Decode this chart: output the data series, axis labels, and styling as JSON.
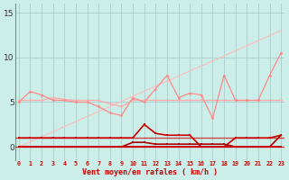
{
  "bg_color": "#cceee8",
  "grid_color": "#aacccc",
  "x_values": [
    0,
    1,
    2,
    3,
    4,
    5,
    6,
    7,
    8,
    9,
    10,
    11,
    12,
    13,
    14,
    15,
    16,
    17,
    18,
    19,
    20,
    21,
    22,
    23
  ],
  "line_diag": [
    0.0,
    0.565,
    1.13,
    1.696,
    2.261,
    2.826,
    3.391,
    3.957,
    4.522,
    5.087,
    5.652,
    6.217,
    6.783,
    7.348,
    7.913,
    8.478,
    9.043,
    9.609,
    10.174,
    10.739,
    11.304,
    11.87,
    12.435,
    13.0
  ],
  "line_flat": [
    5.2,
    5.2,
    5.2,
    5.5,
    5.3,
    5.2,
    5.2,
    5.2,
    4.8,
    4.5,
    5.2,
    5.2,
    5.2,
    5.2,
    5.2,
    5.2,
    5.2,
    5.2,
    5.2,
    5.2,
    5.2,
    5.2,
    5.2,
    5.2
  ],
  "line_jagged": [
    5.0,
    6.2,
    5.8,
    5.2,
    5.2,
    5.0,
    5.0,
    4.5,
    3.8,
    3.5,
    5.5,
    5.0,
    6.5,
    8.0,
    5.5,
    6.0,
    5.8,
    3.2,
    8.0,
    5.2,
    5.2,
    5.2,
    8.0,
    10.5
  ],
  "line_d1": [
    1.0,
    1.0,
    1.0,
    1.0,
    1.0,
    1.0,
    1.0,
    1.0,
    1.0,
    1.0,
    1.0,
    2.5,
    1.5,
    1.3,
    1.3,
    1.3,
    0.0,
    0.0,
    0.0,
    1.0,
    1.0,
    1.0,
    1.0,
    1.3
  ],
  "line_d2": [
    0.0,
    0.0,
    0.0,
    0.0,
    0.0,
    0.0,
    0.0,
    0.0,
    0.0,
    0.0,
    0.5,
    0.5,
    0.3,
    0.3,
    0.3,
    0.3,
    0.3,
    0.3,
    0.3,
    0.0,
    0.0,
    0.0,
    0.0,
    1.3
  ],
  "line_d3": [
    0.0,
    0.0,
    0.0,
    0.0,
    0.0,
    0.0,
    0.0,
    0.0,
    0.0,
    0.0,
    0.0,
    0.0,
    0.0,
    0.0,
    0.0,
    0.0,
    0.0,
    0.0,
    0.0,
    0.0,
    0.0,
    0.0,
    0.0,
    0.0
  ],
  "xlabel": "Vent moyen/en rafales ( km/h )",
  "xlim": [
    -0.3,
    23.3
  ],
  "ylim": [
    -1.5,
    16
  ],
  "yticks": [
    0,
    5,
    10,
    15
  ],
  "xticks": [
    0,
    1,
    2,
    3,
    4,
    5,
    6,
    7,
    8,
    9,
    10,
    11,
    12,
    13,
    14,
    15,
    16,
    17,
    18,
    19,
    20,
    21,
    22,
    23
  ]
}
